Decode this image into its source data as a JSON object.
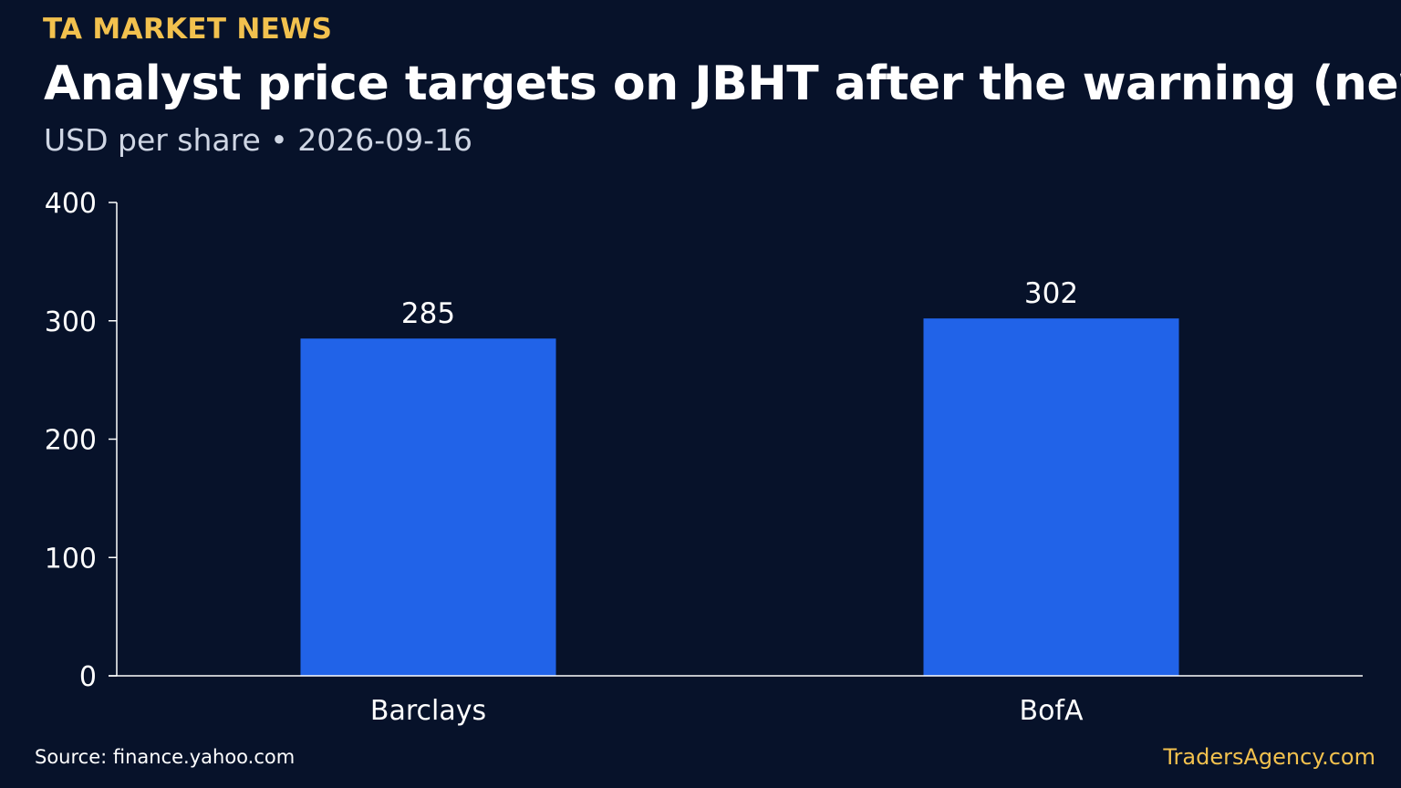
{
  "header": {
    "brand": "TA MARKET NEWS",
    "title": "Analyst price targets on JBHT after the warning (new)",
    "subtitle": "USD per share • 2026-09-16"
  },
  "footer": {
    "source": "Source: finance.yahoo.com",
    "site": "TradersAgency.com"
  },
  "colors": {
    "background": "#07122a",
    "bar": "#2163e8",
    "brand": "#f2c14e",
    "axis": "#ffffff"
  },
  "chart_data": {
    "type": "bar",
    "categories": [
      "Barclays",
      "BofA"
    ],
    "values": [
      285,
      302
    ],
    "value_labels": [
      "285",
      "302"
    ],
    "ylim": [
      0,
      400
    ],
    "yticks": [
      0,
      100,
      200,
      300,
      400
    ],
    "ytick_labels": [
      "0",
      "100",
      "200",
      "300",
      "400"
    ],
    "grid": false,
    "legend": "none"
  }
}
